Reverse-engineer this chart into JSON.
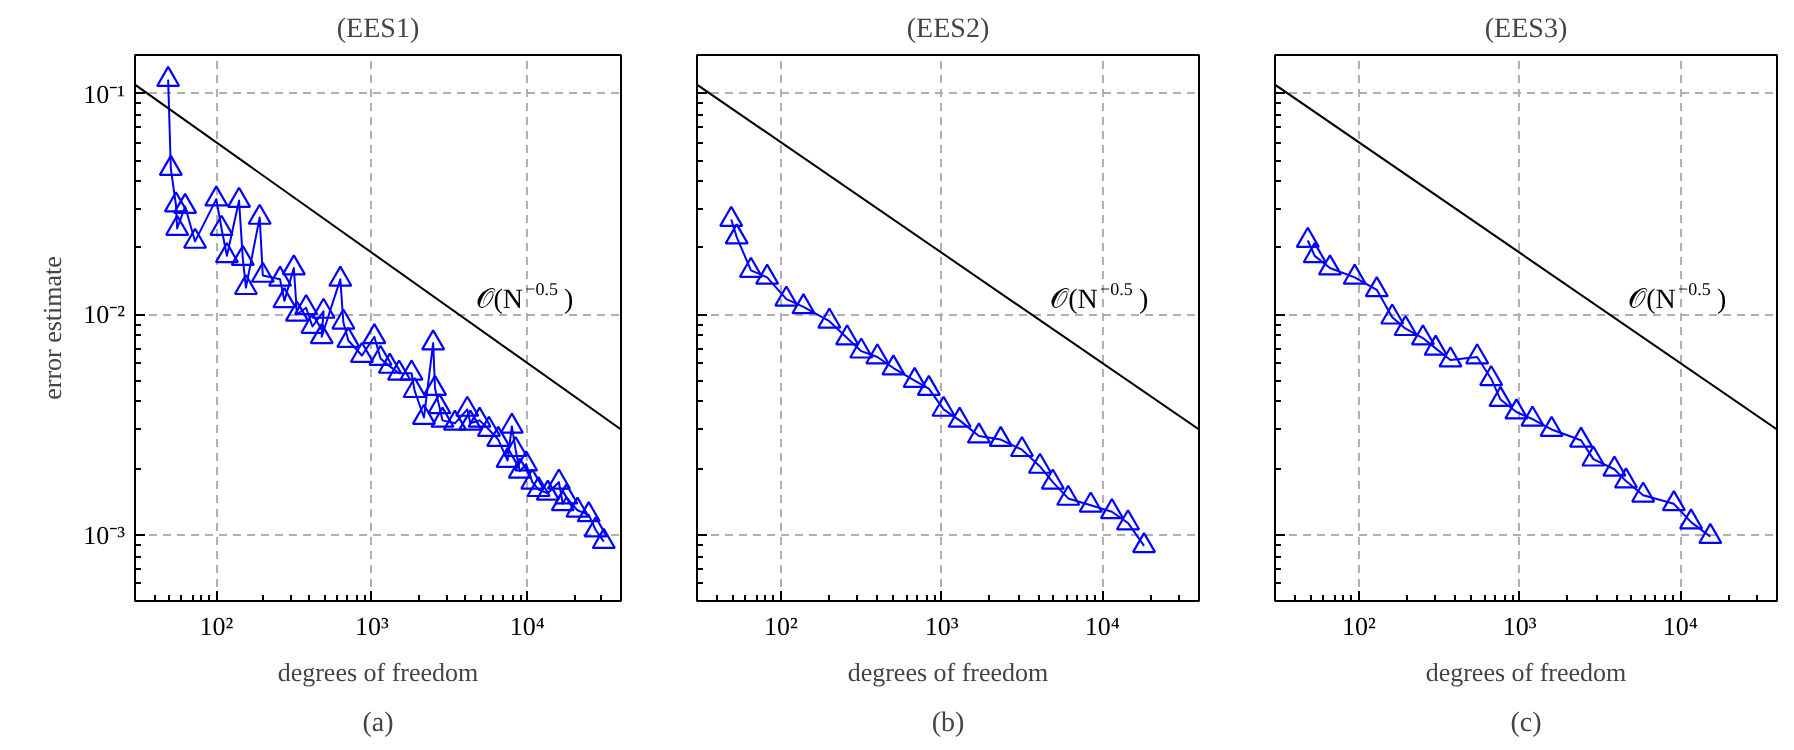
{
  "chart_data": [
    {
      "type": "line",
      "title": "(EES1)",
      "xlabel": "degrees of freedom",
      "ylabel": "error estimate",
      "log": "xy",
      "grid": true,
      "marker": "triangle",
      "xlim": [
        30,
        40000
      ],
      "ylim": [
        0.0005,
        0.15
      ],
      "xticks": [
        {
          "value": 100,
          "label": "10²"
        },
        {
          "value": 1000,
          "label": "10³"
        },
        {
          "value": 10000,
          "label": "10⁴"
        }
      ],
      "yticks": [
        {
          "value": 0.001,
          "label": "10⁻³"
        },
        {
          "value": 0.01,
          "label": "10⁻²"
        },
        {
          "value": 0.1,
          "label": "10⁻¹"
        }
      ],
      "annotations": [
        "𝒪(N$^{−0.5}$)",
        "(a)"
      ],
      "series": [
        {
          "color": "#0000ff",
          "x": [
            49,
            51,
            55,
            56,
            63,
            73,
            100,
            108,
            117,
            140,
            148,
            155,
            190,
            199,
            257,
            274,
            315,
            330,
            378,
            415,
            489,
            476,
            627,
            656,
            706,
            864,
            1038,
            1137,
            1305,
            1497,
            1800,
            1884,
            2163,
            2479,
            2548,
            2718,
            2846,
            3419,
            4110,
            4300,
            4930,
            5660,
            6500,
            7460,
            7950,
            8400,
            8950,
            9820,
            10760,
            11800,
            13530,
            15950,
            16900,
            17820,
            21000,
            24800,
            27500,
            31000
          ],
          "values": [
            0.116,
            0.0458,
            0.0313,
            0.0245,
            0.0308,
            0.0214,
            0.0333,
            0.0245,
            0.0184,
            0.0328,
            0.0179,
            0.0132,
            0.0275,
            0.015,
            0.0144,
            0.0115,
            0.0162,
            0.01,
            0.0107,
            0.0088,
            0.0103,
            0.0079,
            0.0144,
            0.0092,
            0.0076,
            0.0065,
            0.0079,
            0.0063,
            0.0058,
            0.0054,
            0.0054,
            0.0045,
            0.0034,
            0.0074,
            0.0046,
            0.0038,
            0.0033,
            0.0032,
            0.0037,
            0.0032,
            0.0033,
            0.003,
            0.0027,
            0.00217,
            0.0031,
            0.00243,
            0.00194,
            0.00209,
            0.00173,
            0.0016,
            0.00154,
            0.00173,
            0.00138,
            0.00148,
            0.00129,
            0.00123,
            0.00105,
            0.00093
          ]
        },
        {
          "color": "#000000",
          "marker": "none",
          "x": [
            30,
            40000
          ],
          "values": [
            0.11,
            0.003
          ]
        }
      ]
    },
    {
      "type": "line",
      "title": "(EES2)",
      "xlabel": "degrees of freedom",
      "log": "xy",
      "grid": true,
      "marker": "triangle",
      "tick_labels": "x",
      "xlim": [
        30,
        40000
      ],
      "ylim": [
        0.0005,
        0.15
      ],
      "xticks": [
        {
          "value": 100,
          "label": "10²"
        },
        {
          "value": 1000,
          "label": "10³"
        },
        {
          "value": 10000,
          "label": "10⁴"
        }
      ],
      "yticks": [
        0.001,
        0.01,
        0.1
      ],
      "annotations": [
        "𝒪(N$^{−0.5}$)",
        "(b)"
      ],
      "series": [
        {
          "color": "#0000ff",
          "x": [
            49,
            53,
            65,
            82,
            108,
            138,
            200,
            258,
            316,
            398,
            501,
            679,
            832,
            1028,
            1294,
            1706,
            2333,
            3162,
            4093,
            4920,
            6137,
            8472,
            11482,
            14454,
            18197
          ],
          "values": [
            0.0269,
            0.0224,
            0.0158,
            0.0147,
            0.0117,
            0.0108,
            0.0093,
            0.0078,
            0.0068,
            0.0064,
            0.0057,
            0.005,
            0.0046,
            0.0037,
            0.0033,
            0.0028,
            0.0027,
            0.00243,
            0.00204,
            0.00173,
            0.00146,
            0.00136,
            0.00127,
            0.00113,
            0.00089
          ]
        },
        {
          "color": "#000000",
          "marker": "none",
          "x": [
            30,
            40000
          ],
          "values": [
            0.11,
            0.003
          ]
        }
      ]
    },
    {
      "type": "line",
      "title": "(EES3)",
      "xlabel": "degrees of freedom",
      "log": "xy",
      "grid": true,
      "marker": "triangle",
      "tick_labels": "x",
      "xlim": [
        30,
        40000
      ],
      "ylim": [
        0.0005,
        0.15
      ],
      "xticks": [
        {
          "value": 100,
          "label": "10²"
        },
        {
          "value": 1000,
          "label": "10³"
        },
        {
          "value": 10000,
          "label": "10⁴"
        }
      ],
      "yticks": [
        0.001,
        0.01,
        0.1
      ],
      "annotations": [
        "𝒪(N$^{−0.5}$)",
        "(c)"
      ],
      "series": [
        {
          "color": "#0000ff",
          "x": [
            48,
            53,
            66,
            94,
            129,
            161,
            195,
            250,
            300,
            371,
            544,
            665,
            760,
            955,
            1202,
            1581,
            2410,
            2877,
            3890,
            4592,
            5875,
            9120,
            11670,
            15380
          ],
          "values": [
            0.0216,
            0.0184,
            0.0162,
            0.0147,
            0.0129,
            0.0097,
            0.0086,
            0.0078,
            0.007,
            0.0062,
            0.0064,
            0.0051,
            0.0041,
            0.0036,
            0.00334,
            0.003,
            0.00268,
            0.0022,
            0.00198,
            0.00175,
            0.00151,
            0.00138,
            0.00114,
            0.00098
          ]
        },
        {
          "color": "#000000",
          "marker": "none",
          "x": [
            30,
            40000
          ],
          "values": [
            0.11,
            0.003
          ]
        }
      ]
    }
  ]
}
